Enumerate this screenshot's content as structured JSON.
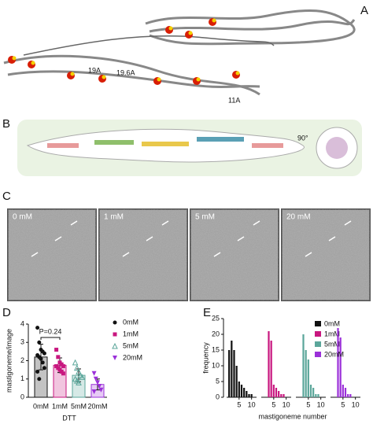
{
  "panel_labels": [
    "A",
    "B",
    "C",
    "D",
    "E"
  ],
  "panel_a": {
    "annotations": [
      "19A",
      "19.6A",
      "11A"
    ]
  },
  "panel_b": {
    "rotation_label": "90°"
  },
  "panel_c": {
    "conditions": [
      "0 mM",
      "1 mM",
      "5 mM",
      "20 mM"
    ]
  },
  "chart_data": [
    {
      "type": "bar",
      "annotation": "P=0.24",
      "ylabel": "mastigoneme/image",
      "xlabel": "DTT",
      "categories": [
        "0mM",
        "1mM",
        "5mM",
        "20mM"
      ],
      "values": [
        2.2,
        1.75,
        1.2,
        0.7
      ],
      "errors": [
        0.7,
        0.4,
        0.35,
        0.3
      ],
      "points": [
        [
          3.8,
          3.0,
          2.6,
          2.5,
          2.4,
          2.3,
          2.2,
          2.1,
          1.9,
          1.6,
          1.4,
          1.0
        ],
        [
          2.6,
          2.2,
          1.9,
          1.8,
          1.7,
          1.7,
          1.6,
          1.5,
          1.4,
          1.3
        ],
        [
          1.9,
          1.6,
          1.4,
          1.2,
          1.1,
          1.0,
          0.9,
          0.8
        ],
        [
          1.3,
          1.0,
          0.8,
          0.6,
          0.4,
          0.3
        ]
      ],
      "colors": [
        "#111111",
        "#c8177f",
        "#5ba69a",
        "#9b30d9"
      ],
      "ylim": [
        0,
        4
      ],
      "yticks": [
        0,
        1,
        2,
        3,
        4
      ]
    },
    {
      "type": "facet-bar",
      "ylabel": "frequency",
      "xlabel": "mastigoneme number",
      "x": [
        1,
        2,
        3,
        4,
        5,
        6,
        7,
        8,
        9,
        10,
        11
      ],
      "series": [
        {
          "name": "0mM",
          "color": "#111111",
          "values": [
            15,
            18,
            15,
            10,
            5,
            4,
            3,
            2,
            1,
            1,
            0
          ]
        },
        {
          "name": "1mM",
          "color": "#c8177f",
          "values": [
            0,
            0,
            21,
            18,
            4,
            3,
            2,
            1,
            1,
            0,
            0
          ]
        },
        {
          "name": "5mM",
          "color": "#5ba69a",
          "values": [
            0,
            0,
            20,
            15,
            12,
            4,
            3,
            1,
            1,
            0,
            0
          ]
        },
        {
          "name": "20mM",
          "color": "#9b30d9",
          "values": [
            0,
            0,
            22,
            19,
            4,
            3,
            1,
            1,
            0,
            0,
            0
          ]
        }
      ],
      "xlim": [
        0,
        12
      ],
      "xticks": [
        5,
        10
      ],
      "ylim": [
        0,
        25
      ],
      "yticks": [
        0,
        5,
        10,
        15,
        20,
        25
      ]
    }
  ]
}
